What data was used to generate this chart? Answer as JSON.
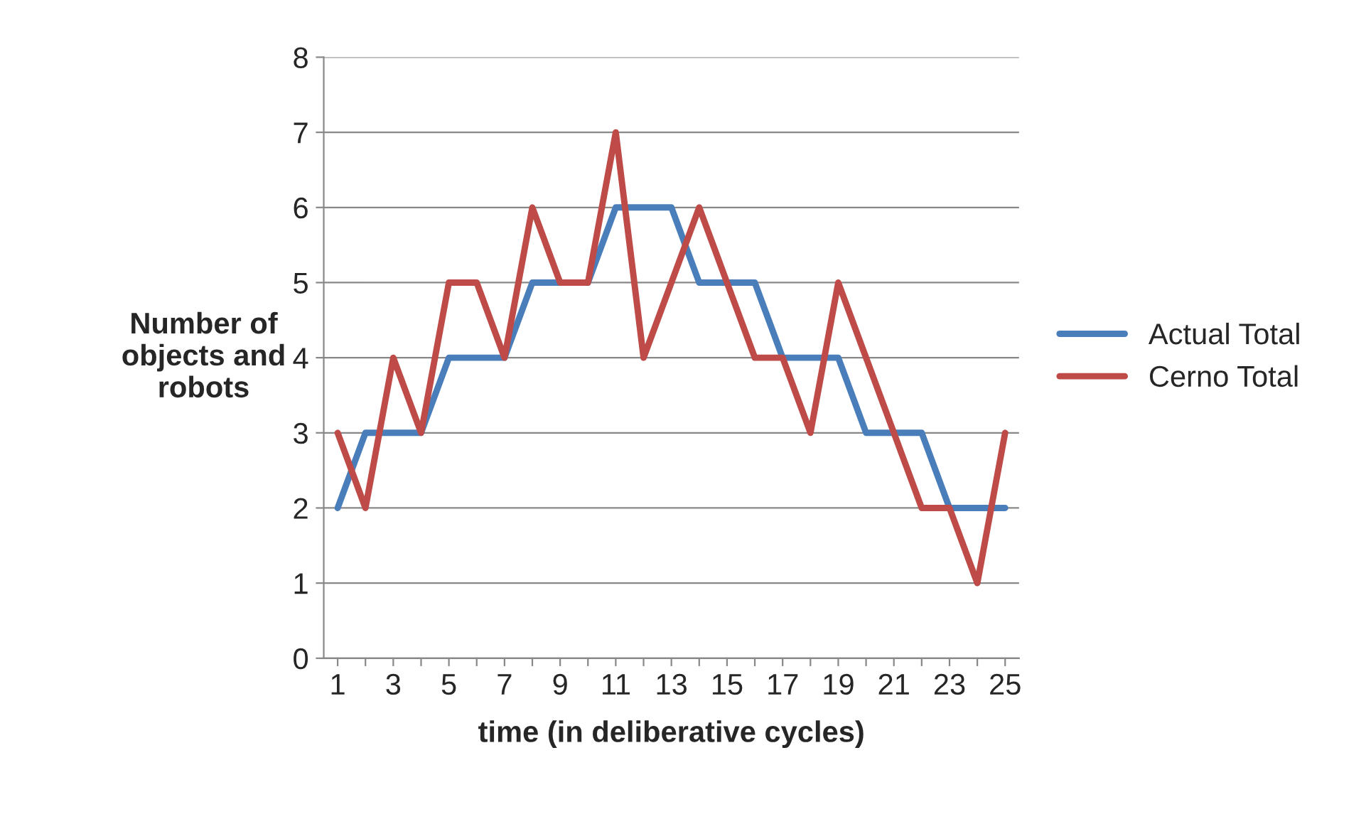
{
  "chart_data": {
    "type": "line",
    "xlabel": "time (in deliberative cycles)",
    "ylabel": "Number of\nobjects and\nrobots",
    "categories": [
      "1",
      null,
      "3",
      null,
      "5",
      null,
      "7",
      null,
      "9",
      null,
      "11",
      null,
      "13",
      null,
      "15",
      null,
      "17",
      null,
      "19",
      null,
      "21",
      null,
      "23",
      null,
      "25"
    ],
    "series": [
      {
        "name": "Actual Total",
        "color": "#4a7ebb",
        "values": [
          2,
          3,
          3,
          3,
          4,
          4,
          4,
          5,
          5,
          5,
          6,
          6,
          6,
          5,
          5,
          5,
          4,
          4,
          4,
          3,
          3,
          3,
          2,
          2,
          2
        ]
      },
      {
        "name": "Cerno Total",
        "color": "#be4b48",
        "values": [
          3,
          2,
          4,
          3,
          5,
          5,
          4,
          6,
          5,
          5,
          7,
          4,
          5,
          6,
          5,
          4,
          4,
          3,
          5,
          4,
          3,
          2,
          2,
          1,
          3
        ]
      }
    ],
    "ylim": [
      0,
      8
    ],
    "yticks": [
      0,
      1,
      2,
      3,
      4,
      5,
      6,
      7,
      8
    ],
    "grid": "y",
    "legend": "right",
    "marker": "none",
    "line_style": "solid"
  }
}
